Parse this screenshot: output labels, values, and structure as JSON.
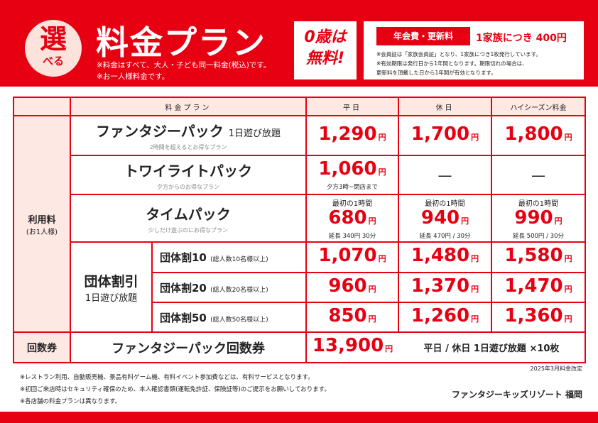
{
  "header": {
    "badge_big": "選",
    "badge_small": "べる",
    "title": "料金プラン",
    "note1": "※料金はすべて、大人・子ども同一料金(税込)です。",
    "note2": "※お一人様料金です。",
    "zero_line1": "0歳は",
    "zero_line2": "無料!"
  },
  "membership": {
    "label": "年会費・更新料",
    "price": "1家族につき 400円",
    "notes": [
      "※会員証は「家族会員証」となり、1家族につき1枚発行しています。",
      "※有効期限は発行日から1年間となります。期限切れの場合は、",
      "更新料を頂戴した日から1年間が有効となります。"
    ]
  },
  "table": {
    "headers": {
      "plan": "料金プラン",
      "weekday": "平日",
      "holiday": "休日",
      "high": "ハイシーズン料金"
    },
    "usage_label": "利用料",
    "usage_sub": "(お1人様)",
    "fantasy": {
      "name": "ファンタジーパック",
      "suffix": "1日遊び放題",
      "sub": "2時間を超えるとお得なプラン",
      "weekday": "1,290",
      "holiday": "1,700",
      "high": "1,800"
    },
    "twilight": {
      "name": "トワイライトパック",
      "sub": "夕方からのお得なプラン",
      "weekday": "1,060",
      "weekday_note": "夕方3時~閉店まで",
      "holiday": "—",
      "high": "—"
    },
    "time": {
      "name": "タイムパック",
      "sub": "少しだけ遊ぶのにお得なプラン",
      "first": "最初の1時間",
      "weekday": "680",
      "weekday_ext": "延長 340円 30分",
      "holiday": "940",
      "holiday_ext": "延長 470円 / 30分",
      "high": "990",
      "high_ext": "延長 500円 / 30分"
    },
    "group": {
      "title": "団体割引",
      "sub": "1日遊び放題",
      "rows": [
        {
          "name": "団体割10",
          "cond": "(総人数10名様以上)",
          "weekday": "1,070",
          "holiday": "1,480",
          "high": "1,580"
        },
        {
          "name": "団体割20",
          "cond": "(総人数20名様以上)",
          "weekday": "960",
          "holiday": "1,370",
          "high": "1,470"
        },
        {
          "name": "団体割50",
          "cond": "(総人数50名様以上)",
          "weekday": "850",
          "holiday": "1,260",
          "high": "1,360"
        }
      ]
    },
    "coupon": {
      "label": "回数券",
      "name": "ファンタジーパック回数券",
      "price": "13,900",
      "desc": "平日 / 休日 1日遊び放題 ×10枚"
    },
    "yen": "円"
  },
  "revision": "2025年3月料金改定",
  "footer_notes": [
    "※レストラン利用、自動販売機、景品有料ゲーム機、有料イベント参加費などは、有料サービスとなります。",
    "※初回ご来店時はセキュリティ確保のため、本人確認書類(運転免許証、保険証等)のご提示をお願いしております。",
    "※各店舗の料金プランは異なります。"
  ],
  "brand": "ファンタジーキッズリゾート 福岡",
  "colors": {
    "accent": "#e60012",
    "pink": "#fde8e4"
  }
}
